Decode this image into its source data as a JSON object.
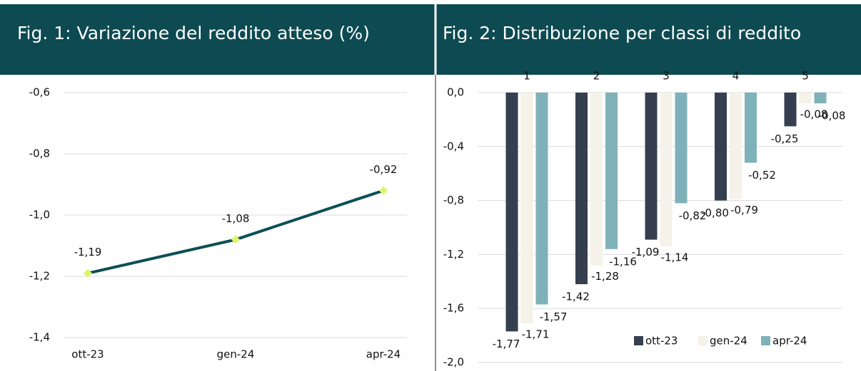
{
  "chart_data": [
    {
      "type": "line",
      "title": "Fig. 1: Variazione del reddito atteso (%)",
      "categories": [
        "ott-23",
        "gen-24",
        "apr-24"
      ],
      "values": [
        -1.19,
        -1.08,
        -0.92
      ],
      "value_labels": [
        "-1,19",
        "-1,08",
        "-0,92"
      ],
      "color": "#0d4f56",
      "marker_color": "#dcf56a",
      "ylim": [
        -1.4,
        -0.6
      ],
      "yticks": [
        {
          "value": -0.6,
          "label": "-0,6"
        },
        {
          "value": -0.8,
          "label": "-0,8"
        },
        {
          "value": -1.0,
          "label": "-1,0"
        },
        {
          "value": -1.2,
          "label": "-1,2"
        },
        {
          "value": -1.4,
          "label": "-1,4"
        }
      ],
      "grid": true
    },
    {
      "type": "bar",
      "title": "Fig. 2: Distribuzione per classi di reddito",
      "categories": [
        "1",
        "2",
        "3",
        "4",
        "5"
      ],
      "series": [
        {
          "name": "ott-23",
          "color": "#353f4f",
          "values": [
            -1.77,
            -1.42,
            -1.09,
            -0.8,
            -0.25
          ],
          "value_labels": [
            "-1,77",
            "-1,42",
            "-1,09",
            "-0,80",
            "-0,25"
          ]
        },
        {
          "name": "gen-24",
          "color": "#f4f2e9",
          "values": [
            -1.71,
            -1.28,
            -1.14,
            -0.79,
            -0.08
          ],
          "value_labels": [
            "-1,71",
            "-1,28",
            "-1,14",
            "-0,79",
            "-0,08"
          ]
        },
        {
          "name": "apr-24",
          "color": "#7fb1b9",
          "values": [
            -1.57,
            -1.16,
            -0.82,
            -0.52,
            -0.08
          ],
          "value_labels": [
            "-1,57",
            "-1,16",
            "-0,82",
            "-0,52",
            "-0,08"
          ]
        }
      ],
      "ylim": [
        -2.0,
        0.0
      ],
      "yticks": [
        {
          "value": 0.0,
          "label": "0,0"
        },
        {
          "value": -0.4,
          "label": "-0,4"
        },
        {
          "value": -0.8,
          "label": "-0,8"
        },
        {
          "value": -1.2,
          "label": "-1,2"
        },
        {
          "value": -1.6,
          "label": "-1,6"
        },
        {
          "value": -2.0,
          "label": "-2,0"
        }
      ],
      "grid": true,
      "legend": "bottom-right"
    }
  ]
}
